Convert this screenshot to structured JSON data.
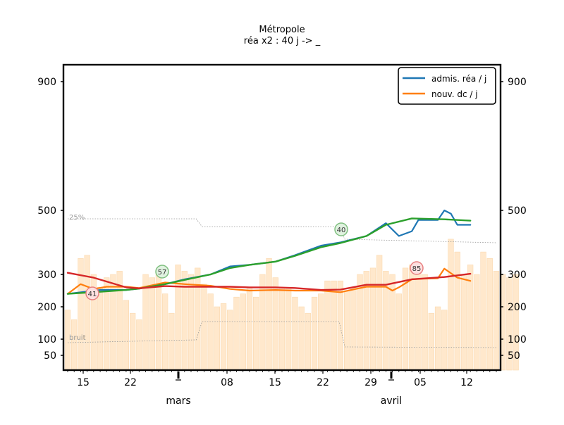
{
  "chart_data": {
    "type": "line",
    "title": "Métropole",
    "subtitle": "réa x2 : 40 j -> _",
    "x_tick_labels": [
      "15",
      "22",
      "08",
      "15",
      "22",
      "29",
      "05",
      "12"
    ],
    "month_labels": [
      "mars",
      "avril"
    ],
    "y_tick_labels": [
      "50",
      "100",
      "200",
      "300",
      "500",
      "900"
    ],
    "legend": [
      "admis. réa / j",
      "nouv. dc / j"
    ],
    "legend_position": "top-right",
    "band_labels": [
      "25%",
      "bruit"
    ],
    "annotations": [
      "41",
      "57",
      "40",
      "85"
    ],
    "grid": false,
    "x_range": [
      "2021-02-11",
      "2021-04-18"
    ],
    "series": [
      {
        "name": "admis. réa / j",
        "color": "#1f77b4",
        "x": [
          "2021-02-11",
          "2021-02-16",
          "2021-02-20",
          "2021-02-22",
          "2021-02-26",
          "2021-03-01",
          "2021-03-05",
          "2021-03-08",
          "2021-03-11",
          "2021-03-15",
          "2021-03-18",
          "2021-03-22",
          "2021-03-25",
          "2021-03-29",
          "2021-04-01",
          "2021-04-03",
          "2021-04-05",
          "2021-04-06",
          "2021-04-09",
          "2021-04-10",
          "2021-04-11",
          "2021-04-12",
          "2021-04-14"
        ],
        "values": [
          240,
          252,
          252,
          256,
          270,
          285,
          300,
          325,
          330,
          340,
          360,
          390,
          400,
          420,
          460,
          420,
          435,
          470,
          470,
          500,
          490,
          455,
          455
        ]
      },
      {
        "name": "nouv. dc / j",
        "color": "#ff7f0e",
        "x": [
          "2021-02-11",
          "2021-02-13",
          "2021-02-15",
          "2021-02-17",
          "2021-02-20",
          "2021-02-22",
          "2021-02-26",
          "2021-03-01",
          "2021-03-05",
          "2021-03-08",
          "2021-03-11",
          "2021-03-15",
          "2021-03-18",
          "2021-03-22",
          "2021-03-25",
          "2021-03-29",
          "2021-04-01",
          "2021-04-02",
          "2021-04-03",
          "2021-04-05",
          "2021-04-07",
          "2021-04-09",
          "2021-04-10",
          "2021-04-12",
          "2021-04-14"
        ],
        "values": [
          240,
          270,
          255,
          262,
          262,
          258,
          275,
          270,
          265,
          255,
          250,
          252,
          250,
          250,
          245,
          262,
          262,
          250,
          260,
          285,
          287,
          288,
          318,
          290,
          280
        ]
      }
    ],
    "trend_lines": [
      {
        "color": "#2ca02c",
        "x": [
          "2021-02-11",
          "2021-02-15",
          "2021-02-20",
          "2021-02-22",
          "2021-02-26",
          "2021-03-01",
          "2021-03-05",
          "2021-03-08",
          "2021-03-11",
          "2021-03-15",
          "2021-03-18",
          "2021-03-22",
          "2021-03-25",
          "2021-03-29",
          "2021-04-01",
          "2021-04-05",
          "2021-04-10",
          "2021-04-14"
        ],
        "values": [
          240,
          245,
          252,
          256,
          270,
          283,
          300,
          320,
          330,
          340,
          358,
          385,
          398,
          420,
          455,
          475,
          472,
          468
        ]
      },
      {
        "color": "#d62728",
        "x": [
          "2021-02-11",
          "2021-02-15",
          "2021-02-20",
          "2021-02-22",
          "2021-02-26",
          "2021-03-01",
          "2021-03-05",
          "2021-03-08",
          "2021-03-11",
          "2021-03-15",
          "2021-03-18",
          "2021-03-22",
          "2021-03-25",
          "2021-03-29",
          "2021-04-01",
          "2021-04-05",
          "2021-04-10",
          "2021-04-14"
        ],
        "values": [
          305,
          290,
          260,
          257,
          264,
          262,
          262,
          262,
          260,
          260,
          258,
          252,
          253,
          268,
          268,
          285,
          292,
          302
        ]
      }
    ],
    "bars": {
      "color": "#ffe8cc",
      "x_start": "2021-02-11",
      "values": [
        190,
        160,
        350,
        360,
        300,
        260,
        290,
        300,
        310,
        220,
        180,
        160,
        300,
        290,
        310,
        240,
        180,
        330,
        310,
        300,
        320,
        270,
        240,
        200,
        210,
        190,
        230,
        240,
        260,
        230,
        300,
        350,
        290,
        260,
        260,
        230,
        200,
        180,
        230,
        240,
        280,
        280,
        280,
        250,
        260,
        300,
        310,
        320,
        360,
        310,
        300,
        240,
        320,
        330,
        310,
        300,
        180,
        200,
        190,
        410,
        370,
        300,
        330,
        300,
        370,
        350,
        310,
        300,
        290,
        300
      ]
    }
  }
}
